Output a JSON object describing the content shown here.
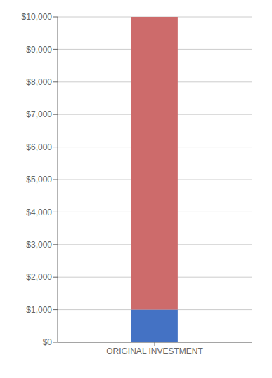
{
  "chart_data": {
    "type": "bar",
    "categories": [
      "ORIGINAL INVESTMENT"
    ],
    "series": [
      {
        "color": "#4472C4",
        "values": [
          1000
        ]
      },
      {
        "color": "#CD6B6B",
        "values": [
          9000
        ]
      }
    ],
    "stacked": true,
    "ylim": [
      0,
      10000
    ],
    "yticks": [
      {
        "value": 0,
        "label": "$0"
      },
      {
        "value": 1000,
        "label": "$1,000"
      },
      {
        "value": 2000,
        "label": "$2,000"
      },
      {
        "value": 3000,
        "label": "$3,000"
      },
      {
        "value": 4000,
        "label": "$4,000"
      },
      {
        "value": 5000,
        "label": "$5,000"
      },
      {
        "value": 6000,
        "label": "$6,000"
      },
      {
        "value": 7000,
        "label": "$7,000"
      },
      {
        "value": 8000,
        "label": "$8,000"
      },
      {
        "value": 9000,
        "label": "$9,000"
      },
      {
        "value": 10000,
        "label": "$10,000"
      }
    ],
    "grid": true
  }
}
